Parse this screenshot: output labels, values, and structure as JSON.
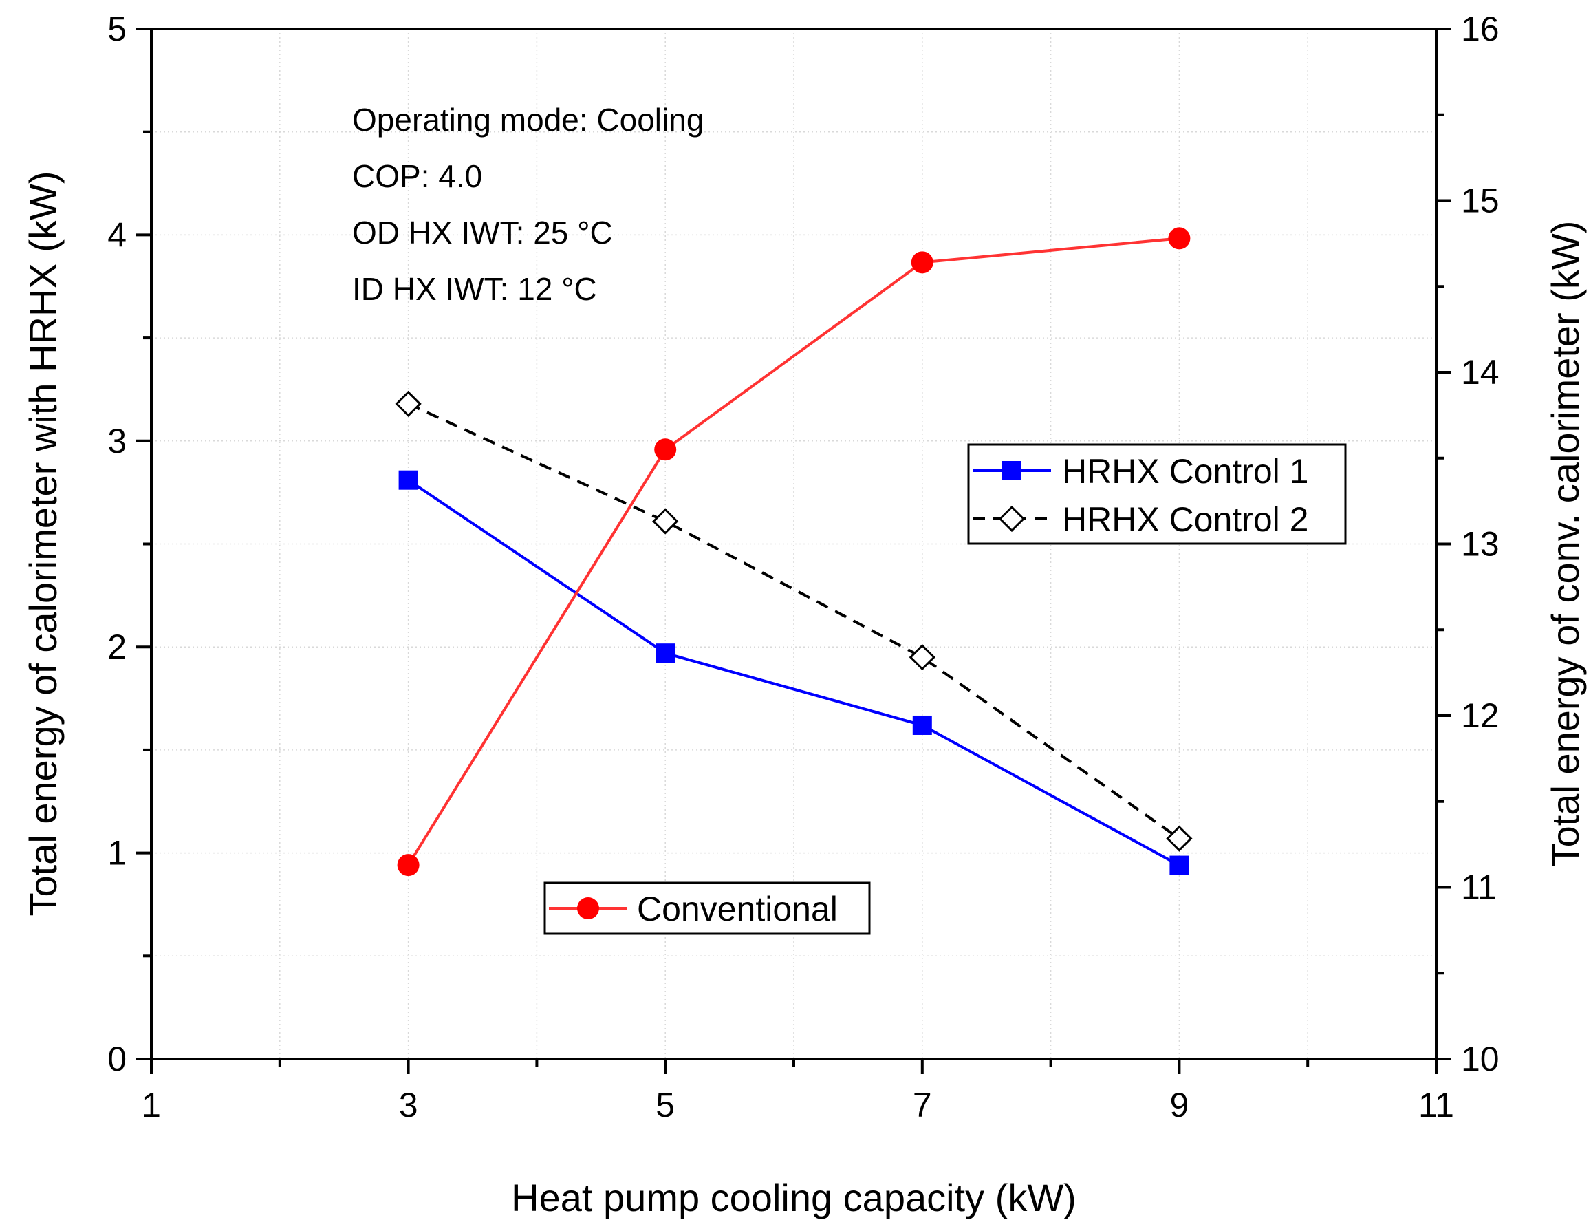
{
  "chart_data": {
    "type": "line",
    "title": "",
    "xlabel": "Heat pump cooling capacity (kW)",
    "ylabel_left": "Total energy of calorimeter with HRHX (kW)",
    "ylabel_right": "Total energy  of conv. calorimeter (kW)",
    "xlim": [
      1,
      11
    ],
    "ylim_left": [
      0,
      5
    ],
    "ylim_right": [
      10,
      16
    ],
    "x_ticks": [
      "1",
      "3",
      "5",
      "7",
      "9",
      "11"
    ],
    "x_tick_values": [
      1,
      3,
      5,
      7,
      9,
      11
    ],
    "y_left_ticks": [
      "0",
      "1",
      "2",
      "3",
      "4",
      "5"
    ],
    "y_left_tick_values": [
      0,
      1,
      2,
      3,
      4,
      5
    ],
    "y_right_ticks": [
      "10",
      "11",
      "12",
      "13",
      "14",
      "15",
      "16"
    ],
    "y_right_tick_values": [
      10,
      11,
      12,
      13,
      14,
      15,
      16
    ],
    "grid": true,
    "annotations": [
      "Operating mode: Cooling",
      "COP: 4.0",
      "OD HX IWT: 25 °C",
      "ID HX IWT: 12 °C"
    ],
    "series": [
      {
        "name": "HRHX Control 1",
        "axis": "left",
        "x": [
          3,
          5,
          7,
          9
        ],
        "values": [
          2.81,
          1.97,
          1.62,
          0.94
        ],
        "color": "#0000ff",
        "line_style": "solid",
        "marker": "square-filled"
      },
      {
        "name": "HRHX Control 2",
        "axis": "left",
        "x": [
          3,
          5,
          7,
          9
        ],
        "values": [
          3.18,
          2.61,
          1.95,
          1.07
        ],
        "color": "#000000",
        "line_style": "dashed",
        "marker": "diamond-open"
      },
      {
        "name": "Conventional",
        "axis": "right",
        "x": [
          3,
          5,
          7,
          9
        ],
        "values": [
          11.13,
          13.55,
          14.64,
          14.78
        ],
        "color": "#ff3333",
        "marker_color": "#ff0000",
        "line_style": "solid",
        "marker": "circle-filled"
      }
    ],
    "legends": [
      {
        "position": "center-right",
        "entries": [
          "HRHX Control 1",
          "HRHX Control 2"
        ]
      },
      {
        "position": "lower-center",
        "entries": [
          "Conventional"
        ]
      }
    ]
  }
}
